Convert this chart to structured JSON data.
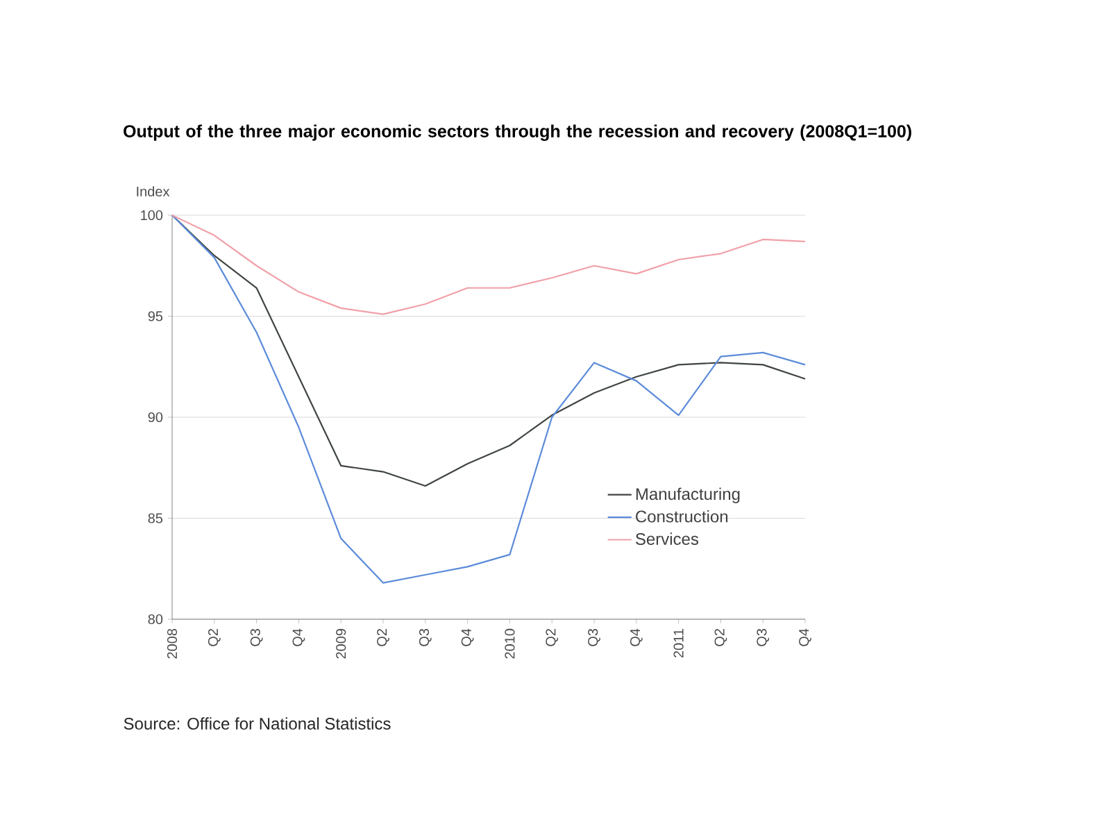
{
  "chart_data": {
    "type": "line",
    "title": "Output of the three major economic sectors through the recession and recovery (2008Q1=100)",
    "ylabel": "Index",
    "categories": [
      "2008",
      "Q2",
      "Q3",
      "Q4",
      "2009",
      "Q2",
      "Q3",
      "Q4",
      "2010",
      "Q2",
      "Q3",
      "Q4",
      "2011",
      "Q2",
      "Q3",
      "Q4"
    ],
    "series": [
      {
        "name": "Manufacturing",
        "color": "#3f453f",
        "values": [
          100,
          98.0,
          96.4,
          92.0,
          87.6,
          87.3,
          86.6,
          87.7,
          88.6,
          90.1,
          91.2,
          92.0,
          92.6,
          92.7,
          92.6,
          91.9
        ]
      },
      {
        "name": "Construction",
        "color": "#5b8bd9",
        "values": [
          100,
          97.9,
          94.2,
          89.5,
          84.0,
          81.8,
          82.2,
          82.6,
          83.2,
          90.0,
          92.7,
          91.8,
          90.1,
          93.0,
          93.2,
          92.6
        ]
      },
      {
        "name": "Services",
        "color": "#f0a0a8",
        "values": [
          100,
          99.0,
          97.5,
          96.2,
          95.4,
          95.1,
          95.6,
          96.4,
          96.4,
          96.9,
          97.5,
          97.1,
          97.8,
          98.1,
          98.8,
          98.7
        ]
      }
    ],
    "ylim": [
      80,
      100
    ],
    "yticks": [
      80,
      85,
      90,
      95,
      100
    ],
    "grid": "y",
    "legend": "bottom right",
    "line_style": "solid",
    "marker": "none",
    "annotations": [
      "Source: Office for National Statistics"
    ]
  }
}
